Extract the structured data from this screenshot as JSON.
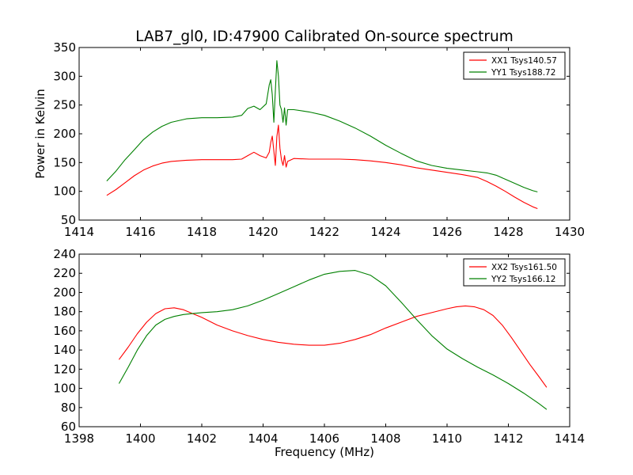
{
  "figure": {
    "title": "LAB7_gl0, ID:47900 Calibrated On-source spectrum"
  },
  "chart_data": [
    {
      "type": "line",
      "title": "LAB7_gl0, ID:47900 Calibrated On-source spectrum",
      "xlabel": "",
      "ylabel": "Power in Kelvin",
      "xlim": [
        1414,
        1430
      ],
      "ylim": [
        50,
        350
      ],
      "xticks": [
        1414,
        1416,
        1418,
        1420,
        1422,
        1424,
        1426,
        1428,
        1430
      ],
      "yticks": [
        50,
        100,
        150,
        200,
        250,
        300,
        350
      ],
      "legend_position": "top-right",
      "series": [
        {
          "name": "XX1 Tsys140.57",
          "color": "#ff0000",
          "x": [
            1414.9,
            1415.2,
            1415.5,
            1415.8,
            1416.1,
            1416.4,
            1416.7,
            1417.0,
            1417.5,
            1418.0,
            1418.5,
            1419.0,
            1419.3,
            1419.5,
            1419.7,
            1419.9,
            1420.1,
            1420.2,
            1420.25,
            1420.3,
            1420.35,
            1420.4,
            1420.45,
            1420.5,
            1420.55,
            1420.6,
            1420.65,
            1420.7,
            1420.75,
            1420.8,
            1421.0,
            1421.5,
            1422.0,
            1422.5,
            1423.0,
            1423.5,
            1424.0,
            1424.5,
            1425.0,
            1425.5,
            1426.0,
            1426.5,
            1427.0,
            1427.3,
            1427.6,
            1427.9,
            1428.2,
            1428.5,
            1428.8,
            1428.95
          ],
          "values": [
            93,
            103,
            115,
            127,
            137,
            144,
            149,
            152,
            154,
            155,
            155,
            155,
            156,
            162,
            168,
            162,
            158,
            168,
            185,
            196,
            170,
            145,
            195,
            215,
            175,
            155,
            145,
            162,
            142,
            152,
            157,
            156,
            156,
            156,
            155,
            153,
            150,
            146,
            141,
            137,
            133,
            129,
            124,
            117,
            109,
            100,
            90,
            81,
            73,
            70
          ]
        },
        {
          "name": "YY1 Tsys188.72",
          "color": "#008000",
          "x": [
            1414.9,
            1415.2,
            1415.5,
            1415.8,
            1416.1,
            1416.4,
            1416.7,
            1417.0,
            1417.5,
            1418.0,
            1418.5,
            1419.0,
            1419.3,
            1419.5,
            1419.7,
            1419.9,
            1420.1,
            1420.2,
            1420.25,
            1420.3,
            1420.35,
            1420.4,
            1420.45,
            1420.5,
            1420.55,
            1420.6,
            1420.65,
            1420.7,
            1420.75,
            1420.8,
            1421.0,
            1421.5,
            1422.0,
            1422.5,
            1423.0,
            1423.5,
            1424.0,
            1424.5,
            1425.0,
            1425.5,
            1426.0,
            1426.5,
            1427.0,
            1427.3,
            1427.6,
            1427.9,
            1428.2,
            1428.5,
            1428.8,
            1428.95
          ],
          "values": [
            118,
            135,
            155,
            172,
            190,
            203,
            213,
            220,
            226,
            228,
            228,
            229,
            232,
            244,
            248,
            242,
            252,
            285,
            294,
            268,
            220,
            275,
            327,
            300,
            250,
            242,
            220,
            245,
            215,
            242,
            242,
            238,
            232,
            222,
            210,
            196,
            180,
            166,
            153,
            145,
            140,
            137,
            134,
            132,
            128,
            121,
            114,
            107,
            101,
            99
          ]
        }
      ]
    },
    {
      "type": "line",
      "title": "",
      "xlabel": "Frequency (MHz)",
      "ylabel": "",
      "xlim": [
        1398,
        1414
      ],
      "ylim": [
        60,
        240
      ],
      "xticks": [
        1398,
        1400,
        1402,
        1404,
        1406,
        1408,
        1410,
        1412,
        1414
      ],
      "yticks": [
        60,
        80,
        100,
        120,
        140,
        160,
        180,
        200,
        220,
        240
      ],
      "legend_position": "top-right",
      "series": [
        {
          "name": "XX2 Tsys161.50",
          "color": "#ff0000",
          "x": [
            1399.3,
            1399.6,
            1399.9,
            1400.2,
            1400.5,
            1400.8,
            1401.1,
            1401.4,
            1401.7,
            1402.0,
            1402.5,
            1403.0,
            1403.5,
            1404.0,
            1404.5,
            1405.0,
            1405.5,
            1406.0,
            1406.5,
            1407.0,
            1407.5,
            1408.0,
            1408.5,
            1409.0,
            1409.5,
            1410.0,
            1410.3,
            1410.6,
            1410.9,
            1411.2,
            1411.5,
            1411.8,
            1412.1,
            1412.4,
            1412.7,
            1413.0,
            1413.25
          ],
          "values": [
            130,
            143,
            157,
            169,
            178,
            183,
            184,
            182,
            178,
            174,
            166,
            160,
            155,
            151,
            148,
            146,
            145,
            145,
            147,
            151,
            156,
            163,
            169,
            175,
            179,
            183,
            185,
            186,
            185,
            182,
            176,
            166,
            153,
            139,
            125,
            112,
            101
          ]
        },
        {
          "name": "YY2 Tsys166.12",
          "color": "#008000",
          "x": [
            1399.3,
            1399.6,
            1399.9,
            1400.2,
            1400.5,
            1400.8,
            1401.1,
            1401.4,
            1401.7,
            1402.0,
            1402.5,
            1403.0,
            1403.5,
            1404.0,
            1404.5,
            1405.0,
            1405.5,
            1406.0,
            1406.5,
            1407.0,
            1407.5,
            1408.0,
            1408.5,
            1409.0,
            1409.5,
            1410.0,
            1410.5,
            1411.0,
            1411.5,
            1412.0,
            1412.5,
            1413.0,
            1413.25
          ],
          "values": [
            105,
            122,
            140,
            155,
            166,
            172,
            175,
            177,
            178,
            179,
            180,
            182,
            186,
            192,
            199,
            206,
            213,
            219,
            222,
            223,
            218,
            207,
            190,
            172,
            155,
            141,
            131,
            122,
            114,
            105,
            95,
            84,
            78
          ]
        }
      ]
    }
  ]
}
